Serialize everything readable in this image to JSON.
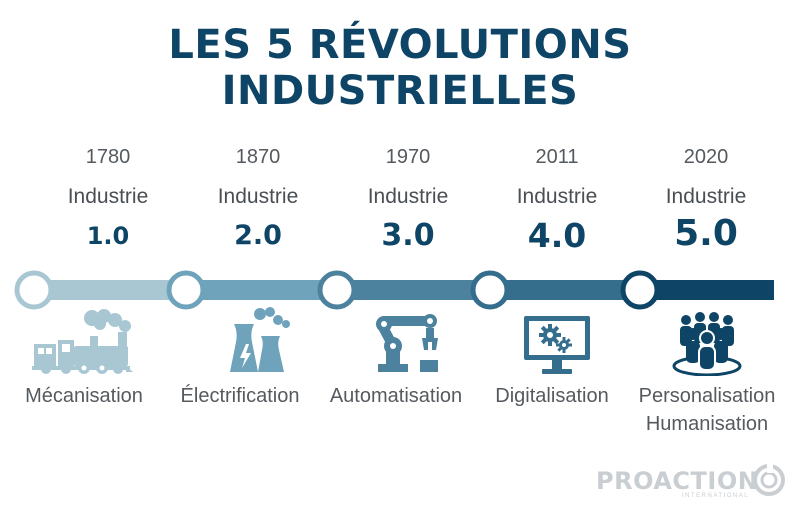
{
  "title": {
    "line1": "LES 5 RÉVOLUTIONS",
    "line2": "INDUSTRIELLES"
  },
  "revolutions": [
    {
      "year": "1780",
      "industrie": "Industrie",
      "version": "1.0",
      "label": "Mécanisation",
      "label2": "",
      "icon": "steam-locomotive-icon",
      "color": "#a9c7d3"
    },
    {
      "year": "1870",
      "industrie": "Industrie",
      "version": "2.0",
      "label": "Électrification",
      "label2": "",
      "icon": "power-plant-icon",
      "color": "#6fa3bc"
    },
    {
      "year": "1970",
      "industrie": "Industrie",
      "version": "3.0",
      "label": "Automatisation",
      "label2": "",
      "icon": "robot-arm-icon",
      "color": "#4c829e"
    },
    {
      "year": "2011",
      "industrie": "Industrie",
      "version": "4.0",
      "label": "Digitalisation",
      "label2": "",
      "icon": "computer-gears-icon",
      "color": "#356d8d"
    },
    {
      "year": "2020",
      "industrie": "Industrie",
      "version": "5.0",
      "label": "Personalisation",
      "label2": "Humanisation",
      "icon": "people-group-icon",
      "color": "#0e4466"
    }
  ],
  "brand": {
    "name": "PROACTION",
    "tagline": "INTERNATIONAL"
  }
}
